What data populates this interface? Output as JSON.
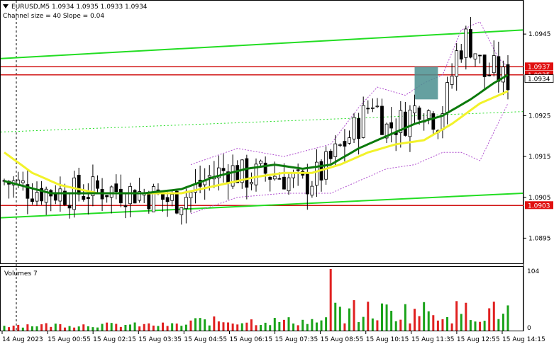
{
  "header": {
    "symbol_line": "EURUSD,M5  1.0934 1.0935 1.0933 1.0934",
    "channel_line": "Channel size = 40 Slope = 0.04"
  },
  "volume_panel": {
    "label": "Volumes 7",
    "max_label": "104",
    "min_label": "0"
  },
  "colors": {
    "up_volume": "#1aa31a",
    "down_volume": "#e02020",
    "channel": "#22dd22",
    "ma_fast": "#0b7a0b",
    "ma_slow": "#f2f22a",
    "band": "#b04fcf",
    "level": "#d11414",
    "label_bg": "#e01010",
    "box": "#4a8f8f"
  },
  "chart_data": {
    "type": "candlestick",
    "price_axis": {
      "ticks": [
        "1.0945",
        "1.0925",
        "1.0915",
        "1.0905",
        "1.0895"
      ],
      "range": [
        1.0889,
        1.0953
      ]
    },
    "price_labels": [
      {
        "value": 1.0937,
        "text": "1.0937",
        "style": "red"
      },
      {
        "value": 1.0935,
        "text": "1.0935",
        "style": "red"
      },
      {
        "value": 1.0934,
        "text": "1.0934",
        "style": "black"
      },
      {
        "value": 1.0903,
        "text": "1.0903",
        "style": "red"
      }
    ],
    "horizontal_levels": [
      1.0937,
      1.0935,
      1.0903
    ],
    "time_labels": [
      "14 Aug 2023",
      "15 Aug 00:55",
      "15 Aug 02:15",
      "15 Aug 03:35",
      "15 Aug 04:55",
      "15 Aug 06:15",
      "15 Aug 07:35",
      "15 Aug 08:55",
      "15 Aug 10:15",
      "15 Aug 11:35",
      "15 Aug 12:55",
      "15 Aug 14:15"
    ],
    "bars": 109,
    "channel_upper": {
      "start": 1.0939,
      "end": 1.0946
    },
    "channel_middle": {
      "start": 1.0921,
      "end": 1.0926
    },
    "channel_lower": {
      "start": 1.09,
      "end": 1.0906
    },
    "price_path": [
      [
        0,
        1.0909
      ],
      [
        6,
        1.0907
      ],
      [
        14,
        1.0906
      ],
      [
        22,
        1.0907
      ],
      [
        30,
        1.0906
      ],
      [
        36,
        1.0904
      ],
      [
        40,
        1.0906
      ],
      [
        44,
        1.091
      ],
      [
        48,
        1.0912
      ],
      [
        52,
        1.091
      ],
      [
        56,
        1.0911
      ],
      [
        60,
        1.091
      ],
      [
        64,
        1.0908
      ],
      [
        68,
        1.0911
      ],
      [
        72,
        1.0917
      ],
      [
        76,
        1.0923
      ],
      [
        79,
        1.0929
      ],
      [
        82,
        1.0922
      ],
      [
        86,
        1.0924
      ],
      [
        89,
        1.0928
      ],
      [
        93,
        1.0924
      ],
      [
        95,
        1.093
      ],
      [
        97,
        1.094
      ],
      [
        99,
        1.0944
      ],
      [
        101,
        1.0941
      ],
      [
        103,
        1.0935
      ],
      [
        105,
        1.0936
      ],
      [
        107,
        1.0934
      ],
      [
        108,
        1.0934
      ]
    ],
    "ma_fast": [
      [
        0,
        1.0909
      ],
      [
        10,
        1.0906
      ],
      [
        20,
        1.0906
      ],
      [
        30,
        1.0906
      ],
      [
        38,
        1.0907
      ],
      [
        45,
        1.091
      ],
      [
        52,
        1.0912
      ],
      [
        58,
        1.0913
      ],
      [
        64,
        1.0912
      ],
      [
        70,
        1.0913
      ],
      [
        76,
        1.0917
      ],
      [
        82,
        1.092
      ],
      [
        88,
        1.0923
      ],
      [
        94,
        1.0925
      ],
      [
        100,
        1.0929
      ],
      [
        105,
        1.0933
      ],
      [
        108,
        1.0935
      ]
    ],
    "ma_slow": [
      [
        0,
        1.0916
      ],
      [
        6,
        1.0911
      ],
      [
        12,
        1.0908
      ],
      [
        20,
        1.0906
      ],
      [
        30,
        1.0906
      ],
      [
        38,
        1.0906
      ],
      [
        46,
        1.0908
      ],
      [
        54,
        1.091
      ],
      [
        60,
        1.0911
      ],
      [
        66,
        1.0911
      ],
      [
        72,
        1.0913
      ],
      [
        78,
        1.0916
      ],
      [
        84,
        1.0918
      ],
      [
        90,
        1.0919
      ],
      [
        96,
        1.0923
      ],
      [
        102,
        1.0928
      ],
      [
        108,
        1.0931
      ]
    ],
    "band_upper": [
      [
        40,
        1.0913
      ],
      [
        50,
        1.0917
      ],
      [
        60,
        1.0915
      ],
      [
        70,
        1.0918
      ],
      [
        76,
        1.0927
      ],
      [
        80,
        1.0932
      ],
      [
        86,
        1.093
      ],
      [
        90,
        1.0933
      ],
      [
        94,
        1.0935
      ],
      [
        98,
        1.0946
      ],
      [
        102,
        1.0948
      ],
      [
        106,
        1.0939
      ],
      [
        108,
        1.0937
      ]
    ],
    "band_lower": [
      [
        40,
        1.0901
      ],
      [
        50,
        1.0905
      ],
      [
        60,
        1.0906
      ],
      [
        70,
        1.0906
      ],
      [
        76,
        1.0909
      ],
      [
        82,
        1.0912
      ],
      [
        88,
        1.0913
      ],
      [
        94,
        1.0916
      ],
      [
        98,
        1.0916
      ],
      [
        102,
        1.0914
      ],
      [
        105,
        1.0921
      ],
      [
        108,
        1.0928
      ]
    ],
    "highlight_box": {
      "bar_start": 88,
      "bar_end": 93,
      "price_top": 1.0937,
      "price_bottom": 1.0929
    },
    "volume_max": 104,
    "volume_spike": {
      "bar": 70,
      "value": 104
    }
  }
}
